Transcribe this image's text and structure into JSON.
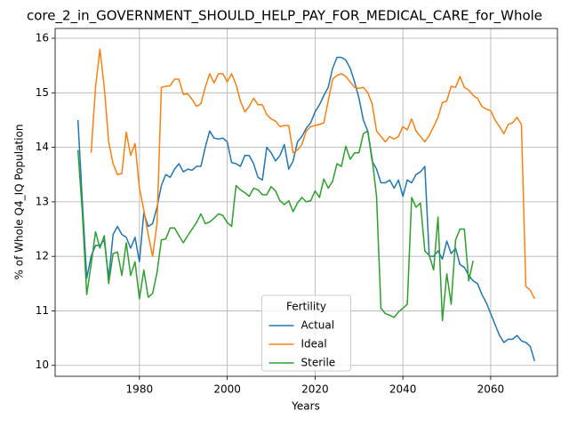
{
  "chart_data": {
    "type": "line",
    "title": "core_2_in_GOVERNMENT_SHOULD_HELP_PAY_FOR_MEDICAL_CARE_for_Whole",
    "xlabel": "Years",
    "ylabel": "% of Whole Q4_IQ Population",
    "legend_title": "Fertility",
    "legend": "lower center",
    "grid": true,
    "xlim": [
      1960.8,
      2075.2
    ],
    "ylim": [
      9.8,
      16.18
    ],
    "xticks": [
      1980,
      2000,
      2020,
      2040,
      2060
    ],
    "yticks": [
      10,
      11,
      12,
      13,
      14,
      15,
      16
    ],
    "x": [
      1966,
      1967,
      1968,
      1969,
      1970,
      1971,
      1972,
      1973,
      1974,
      1975,
      1976,
      1977,
      1978,
      1979,
      1980,
      1981,
      1982,
      1983,
      1984,
      1985,
      1986,
      1987,
      1988,
      1989,
      1990,
      1991,
      1992,
      1993,
      1994,
      1995,
      1996,
      1997,
      1998,
      1999,
      2000,
      2001,
      2002,
      2003,
      2004,
      2005,
      2006,
      2007,
      2008,
      2009,
      2010,
      2011,
      2012,
      2013,
      2014,
      2015,
      2016,
      2017,
      2018,
      2019,
      2020,
      2021,
      2022,
      2023,
      2024,
      2025,
      2026,
      2027,
      2028,
      2029,
      2030,
      2031,
      2032,
      2033,
      2034,
      2035,
      2036,
      2037,
      2038,
      2039,
      2040,
      2041,
      2042,
      2043,
      2044,
      2045,
      2046,
      2047,
      2048,
      2049,
      2050,
      2051,
      2052,
      2053,
      2054,
      2055,
      2056,
      2057,
      2058,
      2059,
      2060,
      2061,
      2062,
      2063,
      2064,
      2065,
      2066,
      2067,
      2068,
      2069,
      2070
    ],
    "series": [
      {
        "name": "Actual",
        "color": "#1f77b4",
        "values": [
          14.5,
          13.0,
          11.6,
          12.0,
          12.2,
          12.2,
          12.3,
          11.6,
          12.4,
          12.55,
          12.4,
          12.35,
          12.15,
          12.35,
          11.9,
          12.8,
          12.55,
          12.6,
          12.9,
          13.3,
          13.5,
          13.45,
          13.6,
          13.7,
          13.55,
          13.6,
          13.58,
          13.65,
          13.65,
          14.0,
          14.3,
          14.17,
          14.15,
          14.17,
          14.1,
          13.72,
          13.7,
          13.65,
          13.85,
          13.85,
          13.7,
          13.45,
          13.4,
          14.0,
          13.9,
          13.75,
          13.85,
          14.05,
          13.6,
          13.75,
          14.1,
          14.2,
          14.35,
          14.45,
          14.65,
          14.78,
          14.95,
          15.1,
          15.45,
          15.65,
          15.65,
          15.6,
          15.45,
          15.2,
          14.9,
          14.5,
          14.3,
          13.75,
          13.6,
          13.35,
          13.35,
          13.4,
          13.25,
          13.4,
          13.1,
          13.4,
          13.35,
          13.5,
          13.55,
          13.65,
          12.0,
          12.0,
          12.1,
          11.95,
          12.28,
          12.05,
          12.15,
          11.85,
          11.8,
          11.65,
          11.55,
          11.5,
          11.3,
          11.15,
          10.95,
          10.75,
          10.55,
          10.42,
          10.48,
          10.48,
          10.55,
          10.45,
          10.42,
          10.35,
          10.08
        ]
      },
      {
        "name": "Ideal",
        "color": "#ff7f0e",
        "values": [
          null,
          null,
          null,
          13.9,
          15.1,
          15.8,
          15.1,
          14.1,
          13.7,
          13.5,
          13.52,
          14.28,
          13.85,
          14.07,
          13.25,
          12.85,
          12.4,
          12.0,
          12.6,
          15.1,
          15.12,
          15.13,
          15.25,
          15.25,
          14.97,
          14.98,
          14.88,
          14.75,
          14.8,
          15.1,
          15.35,
          15.18,
          15.35,
          15.35,
          15.2,
          15.35,
          15.15,
          14.85,
          14.65,
          14.75,
          14.9,
          14.78,
          14.78,
          14.6,
          14.52,
          14.48,
          14.38,
          14.4,
          14.4,
          13.9,
          13.95,
          14.05,
          14.3,
          14.38,
          14.4,
          14.42,
          14.45,
          14.85,
          15.25,
          15.32,
          15.35,
          15.3,
          15.2,
          15.1,
          15.08,
          15.1,
          15.0,
          14.8,
          14.3,
          14.2,
          14.1,
          14.2,
          14.15,
          14.2,
          14.38,
          14.32,
          14.52,
          14.3,
          14.2,
          14.1,
          14.22,
          14.38,
          14.55,
          14.82,
          14.85,
          15.12,
          15.1,
          15.3,
          15.1,
          15.05,
          14.95,
          14.9,
          14.75,
          14.7,
          14.67,
          14.5,
          14.38,
          14.25,
          14.42,
          14.45,
          14.55,
          14.42,
          11.45,
          11.38,
          11.22
        ]
      },
      {
        "name": "Sterile",
        "color": "#2ca02c",
        "values": [
          13.95,
          12.8,
          11.3,
          11.85,
          12.45,
          12.15,
          12.38,
          11.5,
          12.05,
          12.08,
          11.65,
          12.25,
          11.65,
          11.9,
          11.22,
          11.75,
          11.25,
          11.32,
          11.7,
          12.3,
          12.32,
          12.52,
          12.52,
          12.38,
          12.25,
          12.38,
          12.5,
          12.62,
          12.78,
          12.6,
          12.63,
          12.7,
          12.78,
          12.75,
          12.62,
          12.55,
          13.3,
          13.22,
          13.17,
          13.1,
          13.25,
          13.22,
          13.13,
          13.13,
          13.28,
          13.2,
          13.02,
          12.95,
          13.02,
          12.82,
          12.98,
          13.08,
          13.0,
          13.02,
          13.2,
          13.08,
          13.42,
          13.25,
          13.38,
          13.7,
          13.65,
          14.02,
          13.78,
          13.9,
          13.9,
          14.25,
          14.3,
          13.8,
          13.1,
          11.05,
          10.95,
          10.92,
          10.88,
          10.98,
          11.05,
          11.12,
          13.08,
          12.9,
          12.98,
          12.1,
          12.02,
          11.75,
          12.72,
          10.82,
          11.68,
          11.12,
          12.3,
          12.5,
          12.5,
          11.55,
          11.92,
          null,
          null,
          null,
          null,
          null,
          null,
          null,
          null,
          null,
          null,
          null,
          null,
          null,
          null
        ]
      }
    ]
  }
}
